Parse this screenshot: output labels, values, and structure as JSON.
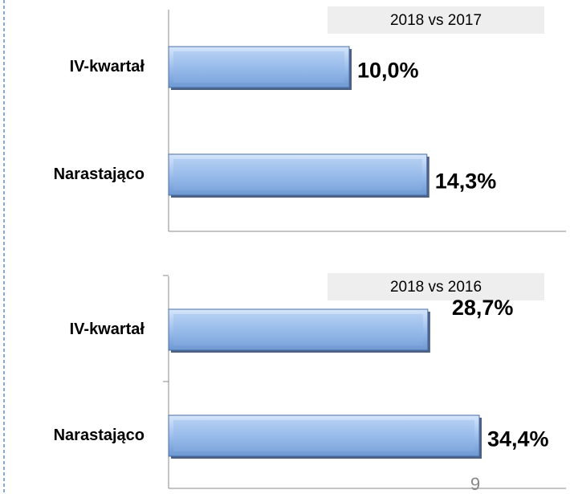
{
  "chart_data": [
    {
      "type": "bar",
      "orientation": "horizontal",
      "subtitle": "2018 vs 2017",
      "categories": [
        "IV-kwartał",
        "Narastająco"
      ],
      "values": [
        10.0,
        14.3
      ],
      "value_labels": [
        "10,0%",
        "14,3%"
      ],
      "xlim": [
        0,
        20
      ],
      "color": "#8db4e8"
    },
    {
      "type": "bar",
      "orientation": "horizontal",
      "subtitle": "2018 vs 2016",
      "categories": [
        "IV-kwartał",
        "Narastająco"
      ],
      "values": [
        28.7,
        34.4
      ],
      "value_labels": [
        "28,7%",
        "34,4%"
      ],
      "xlim": [
        0,
        40
      ],
      "color": "#8db4e8"
    }
  ],
  "page_number": "9"
}
